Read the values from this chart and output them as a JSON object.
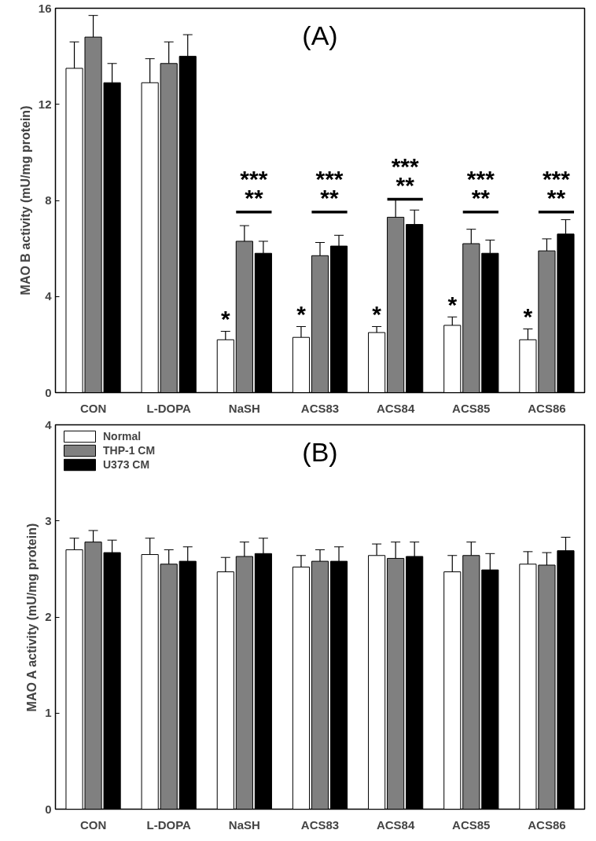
{
  "chart_data": [
    {
      "type": "bar",
      "ylabel": "MAO B activity (mU/mg protein)",
      "categories": [
        "CON",
        "L-DOPA",
        "NaSH",
        "ACS83",
        "ACS84",
        "ACS85",
        "ACS86"
      ],
      "series": [
        {
          "color": "#ffffff",
          "values": [
            13.5,
            12.9,
            2.2,
            2.3,
            2.5,
            2.8,
            2.2
          ],
          "errors": [
            [
              13.5,
              14.6
            ],
            [
              12.9,
              13.9
            ],
            [
              2.2,
              2.55
            ],
            [
              2.3,
              2.75
            ],
            [
              2.5,
              2.75
            ],
            [
              2.8,
              3.15
            ],
            [
              2.2,
              2.65
            ]
          ]
        },
        {
          "color": "#808080",
          "values": [
            14.8,
            13.7,
            6.3,
            5.7,
            7.3,
            6.2,
            5.9
          ],
          "errors": [
            [
              14.8,
              15.7
            ],
            [
              13.7,
              14.6
            ],
            [
              6.3,
              6.95
            ],
            [
              5.7,
              6.25
            ],
            [
              7.3,
              8.05
            ],
            [
              6.2,
              6.8
            ],
            [
              5.9,
              6.4
            ]
          ]
        },
        {
          "color": "#000000",
          "values": [
            12.9,
            14.0,
            5.8,
            6.1,
            7.0,
            5.8,
            6.6
          ],
          "errors": [
            [
              12.9,
              13.7
            ],
            [
              14.0,
              14.9
            ],
            [
              5.8,
              6.3
            ],
            [
              6.1,
              6.55
            ],
            [
              7.0,
              7.6
            ],
            [
              5.8,
              6.35
            ],
            [
              6.6,
              7.2
            ]
          ]
        }
      ],
      "ylim": [
        0,
        16
      ],
      "yticks": [
        0,
        4,
        8,
        12,
        16
      ],
      "grid": false,
      "legend": false,
      "annotations": [
        "(A)",
        "*",
        "***",
        "**",
        "*",
        "***",
        "**",
        "*",
        "***",
        "**",
        "*",
        "***",
        "**",
        "*",
        "***",
        "**"
      ]
    },
    {
      "type": "bar",
      "ylabel": "MAO A activity (mU/mg protein)",
      "categories": [
        "CON",
        "L-DOPA",
        "NaSH",
        "ACS83",
        "ACS84",
        "ACS85",
        "ACS86"
      ],
      "series": [
        {
          "name": "Normal",
          "color": "#ffffff",
          "values": [
            2.7,
            2.65,
            2.47,
            2.52,
            2.64,
            2.47,
            2.55
          ],
          "errors": [
            [
              2.7,
              2.82
            ],
            [
              2.65,
              2.82
            ],
            [
              2.47,
              2.62
            ],
            [
              2.52,
              2.64
            ],
            [
              2.64,
              2.76
            ],
            [
              2.47,
              2.64
            ],
            [
              2.55,
              2.68
            ]
          ]
        },
        {
          "name": "THP-1 CM",
          "color": "#808080",
          "values": [
            2.78,
            2.55,
            2.63,
            2.58,
            2.61,
            2.64,
            2.54
          ],
          "errors": [
            [
              2.78,
              2.9
            ],
            [
              2.55,
              2.7
            ],
            [
              2.63,
              2.78
            ],
            [
              2.58,
              2.7
            ],
            [
              2.61,
              2.78
            ],
            [
              2.64,
              2.78
            ],
            [
              2.54,
              2.67
            ]
          ]
        },
        {
          "name": "U373 CM",
          "color": "#000000",
          "values": [
            2.67,
            2.58,
            2.66,
            2.58,
            2.63,
            2.49,
            2.69
          ],
          "errors": [
            [
              2.67,
              2.8
            ],
            [
              2.58,
              2.73
            ],
            [
              2.66,
              2.82
            ],
            [
              2.58,
              2.73
            ],
            [
              2.63,
              2.78
            ],
            [
              2.49,
              2.66
            ],
            [
              2.69,
              2.83
            ]
          ]
        }
      ],
      "ylim": [
        0,
        4
      ],
      "yticks": [
        0,
        1,
        2,
        3,
        4
      ],
      "grid": false,
      "legend": "top left",
      "annotations": [
        "(B)"
      ]
    }
  ]
}
